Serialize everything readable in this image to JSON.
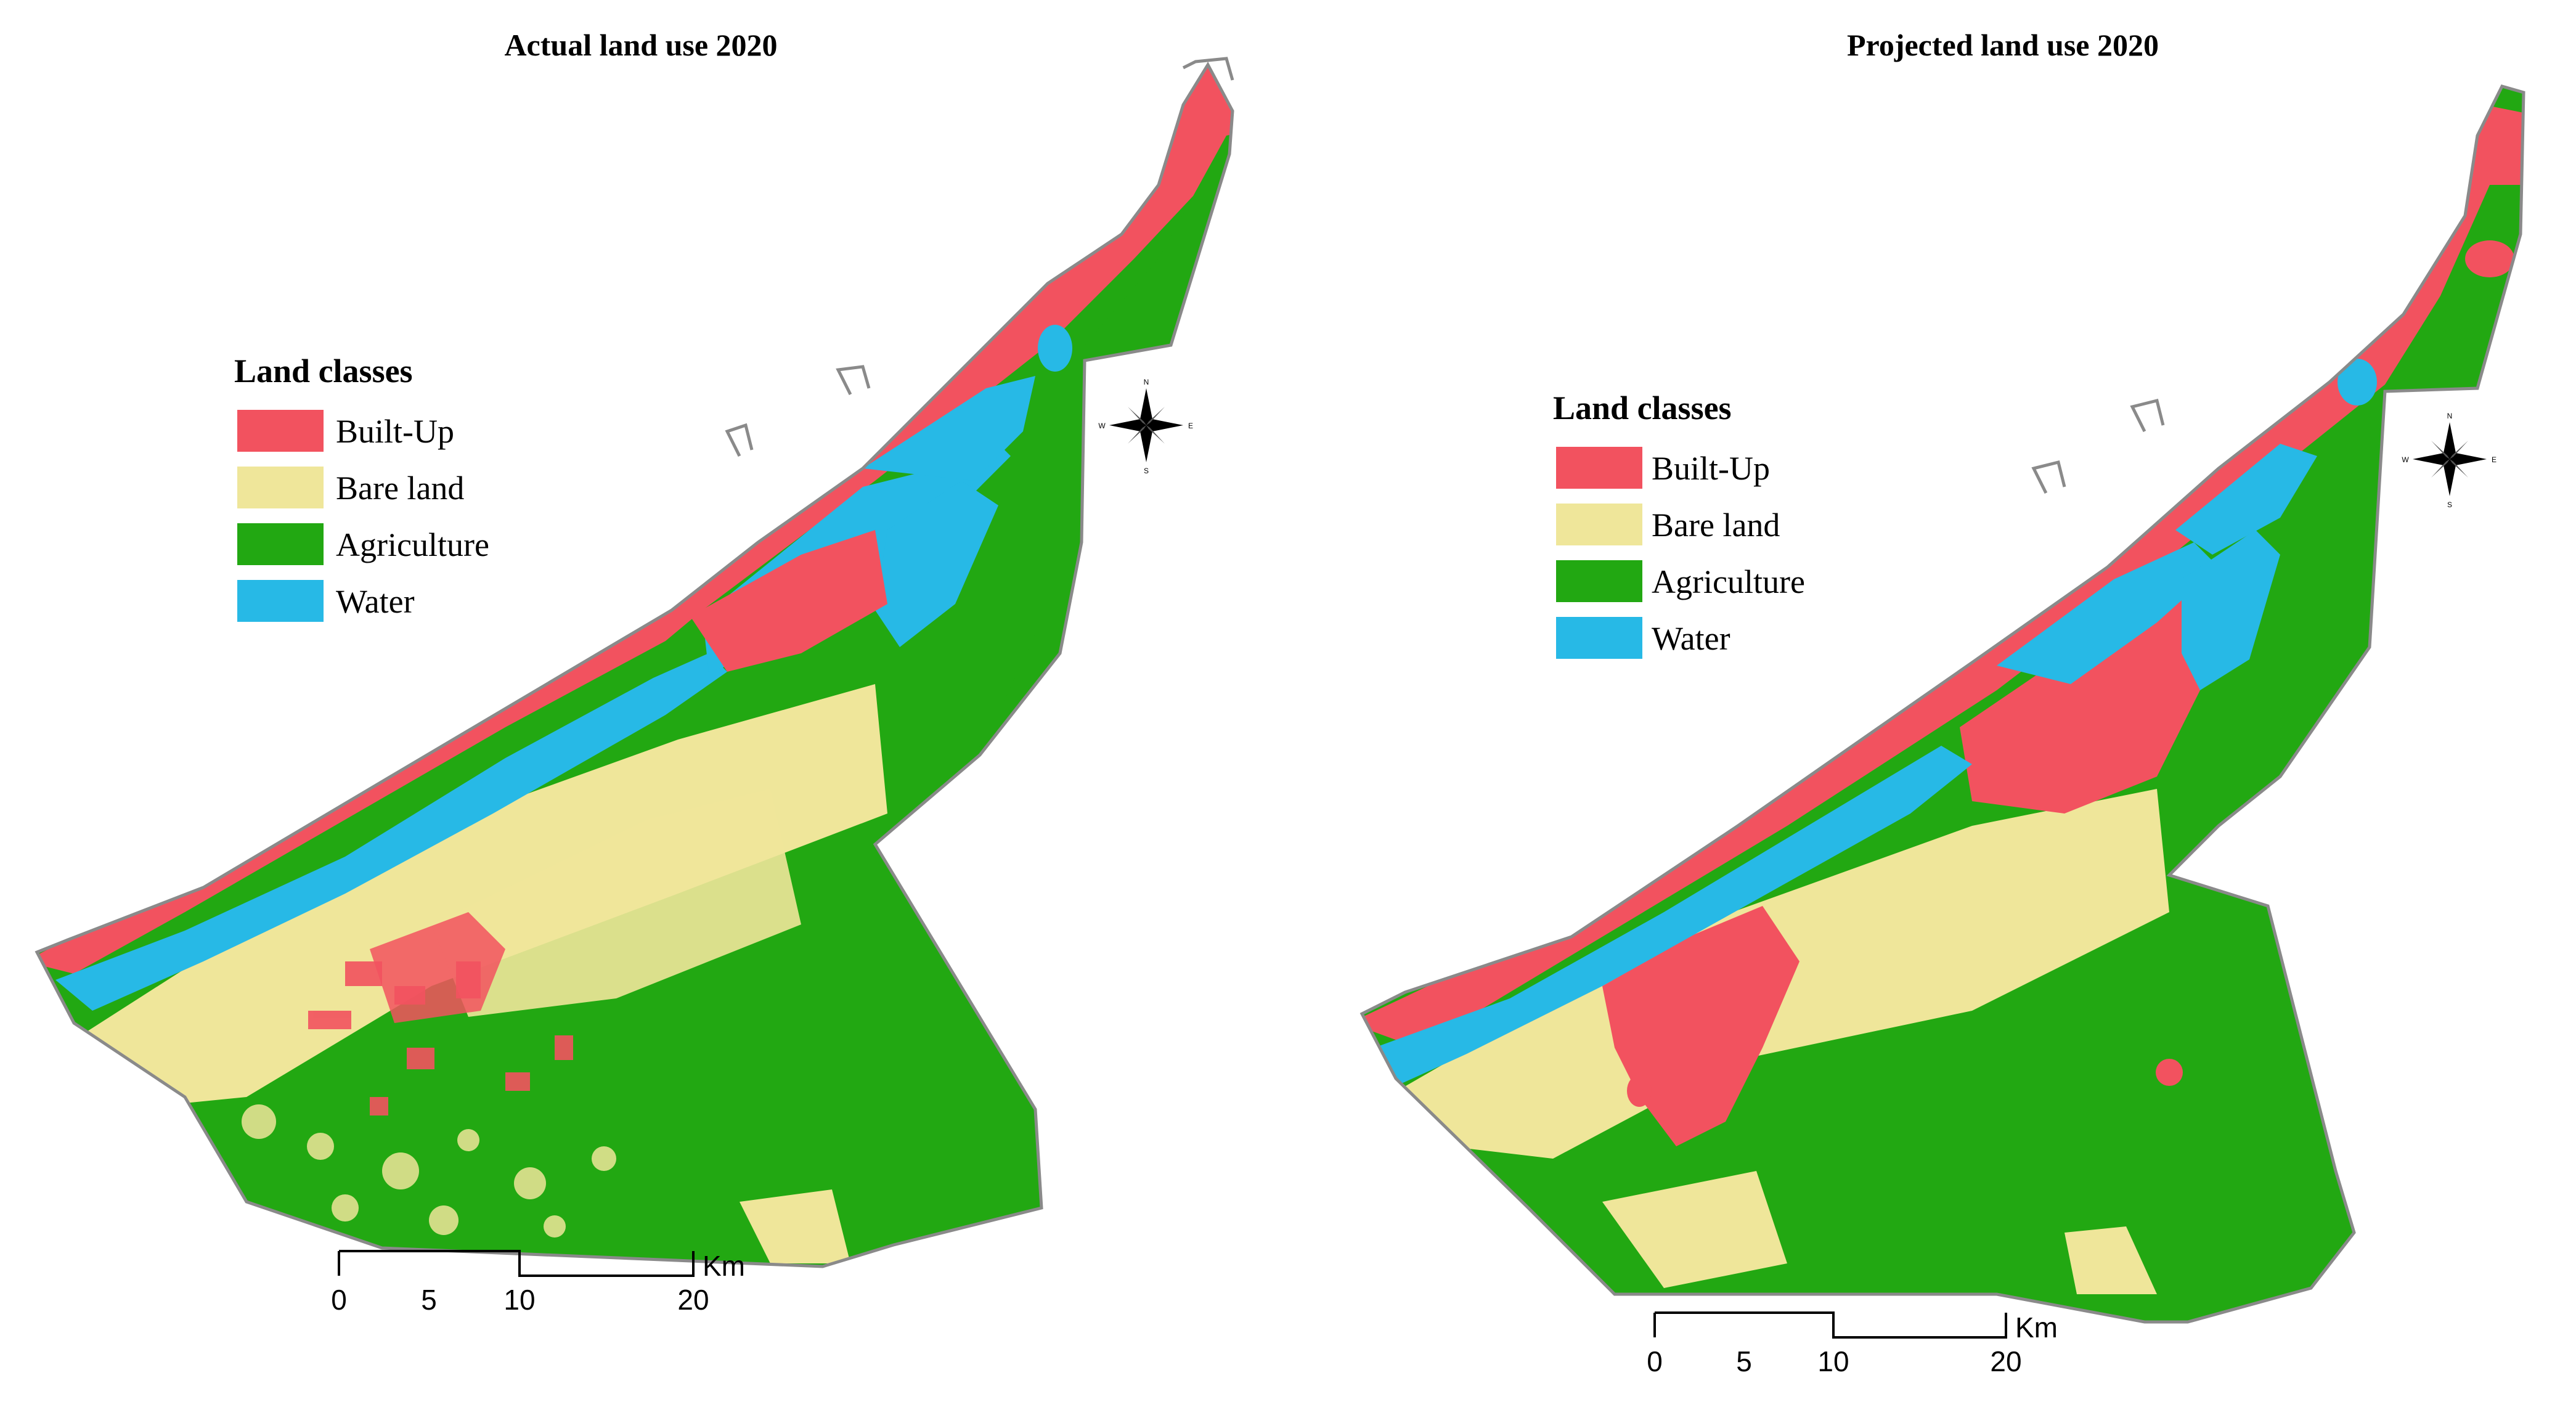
{
  "maps": [
    {
      "title": "Actual land use 2020",
      "legend": {
        "title": "Land classes",
        "items": [
          {
            "label": "Built-Up",
            "color": "#f2525f"
          },
          {
            "label": "Bare land",
            "color": "#efe69a"
          },
          {
            "label": "Agriculture",
            "color": "#22a812"
          },
          {
            "label": "Water",
            "color": "#27b9e6"
          }
        ]
      },
      "scale_bar": {
        "labels": [
          "0",
          "5",
          "10",
          "20"
        ],
        "unit": "Km"
      },
      "compass": {
        "n": "N",
        "s": "S",
        "e": "E",
        "w": "W"
      }
    },
    {
      "title": "Projected  land  use 2020",
      "legend": {
        "title": "Land classes",
        "items": [
          {
            "label": "Built-Up",
            "color": "#f2525f"
          },
          {
            "label": "Bare land",
            "color": "#efe69a"
          },
          {
            "label": "Agriculture",
            "color": "#22a812"
          },
          {
            "label": "Water",
            "color": "#27b9e6"
          }
        ]
      },
      "scale_bar": {
        "labels": [
          "0",
          "5",
          "10",
          "20"
        ],
        "unit": "Km"
      },
      "compass": {
        "n": "N",
        "s": "S",
        "e": "E",
        "w": "W"
      }
    }
  ],
  "colors": {
    "built_up": "#f2525f",
    "bare_land": "#efe69a",
    "agriculture": "#22a812",
    "water": "#27b9e6",
    "boundary": "#8a8a8a"
  }
}
